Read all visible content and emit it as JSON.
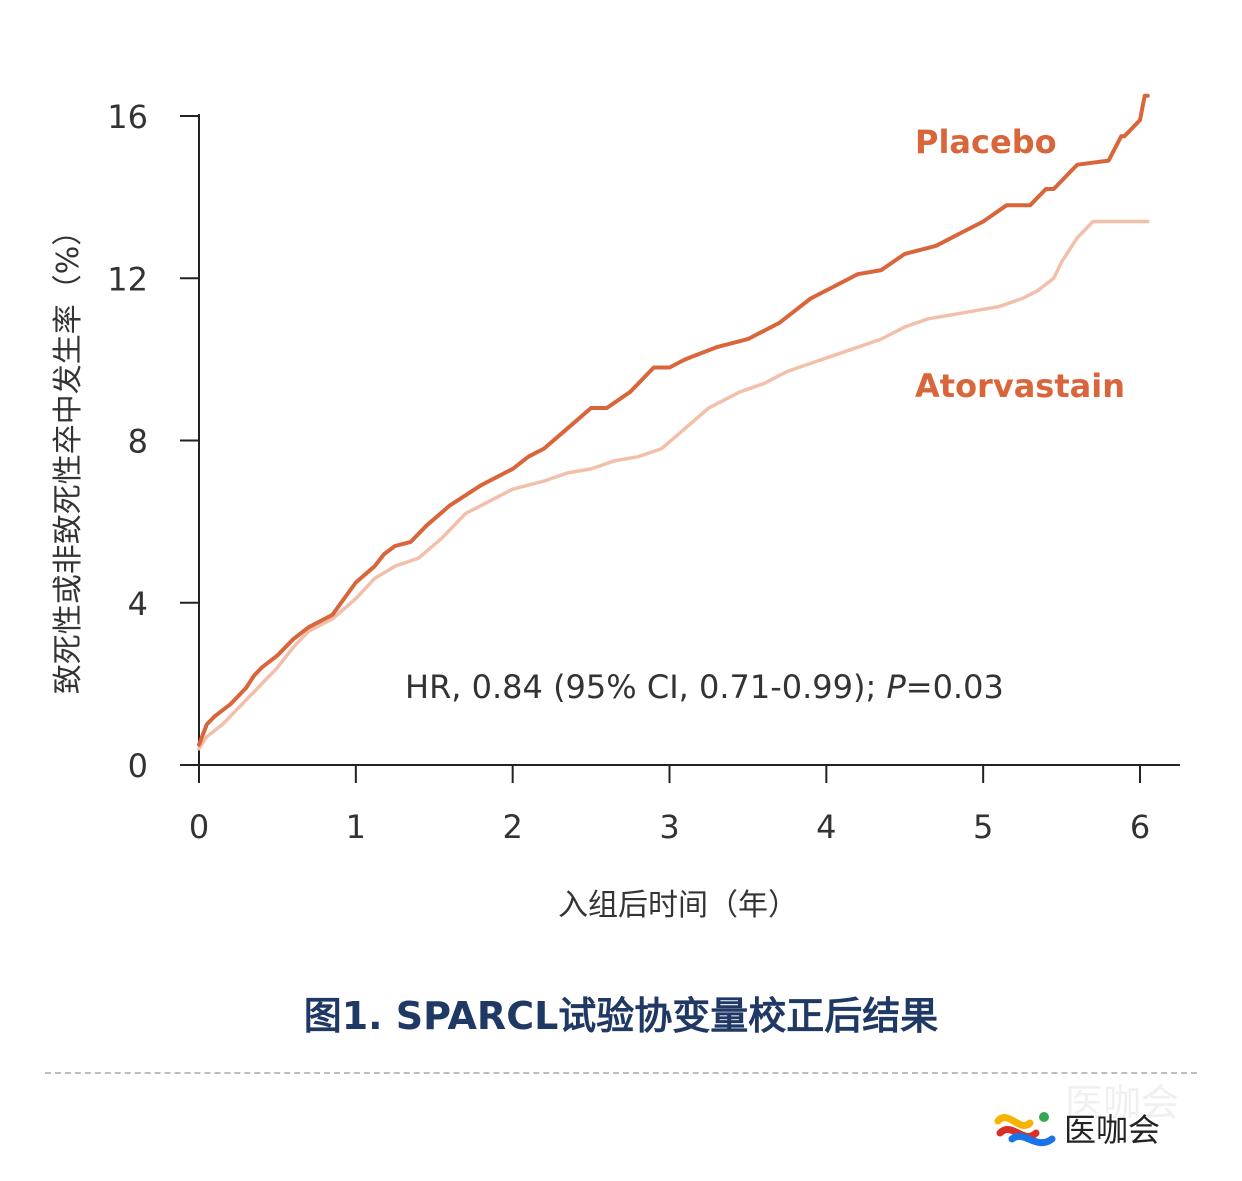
{
  "chart_data": {
    "type": "line",
    "title": "",
    "xlabel": "入组后时间（年）",
    "ylabel": "致死性或非致死性卒中发生率（%）",
    "xlim": [
      0,
      6.25
    ],
    "ylim": [
      0,
      16
    ],
    "xticks": [
      "0",
      "1",
      "2",
      "3",
      "4",
      "5",
      "6"
    ],
    "yticks": [
      "0",
      "4",
      "8",
      "12",
      "16"
    ],
    "annotation": {
      "prefix": "HR, 0.84 (95% CI, 0.71-0.99); ",
      "p_label": "P",
      "p_value": "=0.03"
    },
    "series": [
      {
        "name": "Placebo",
        "color": "#d9653b",
        "x": [
          0,
          0.05,
          0.1,
          0.2,
          0.3,
          0.35,
          0.4,
          0.5,
          0.6,
          0.7,
          0.85,
          1.0,
          1.12,
          1.18,
          1.25,
          1.35,
          1.45,
          1.6,
          1.8,
          2.0,
          2.1,
          2.2,
          2.35,
          2.5,
          2.6,
          2.75,
          2.9,
          3.0,
          3.1,
          3.3,
          3.5,
          3.7,
          3.8,
          3.9,
          4.05,
          4.2,
          4.35,
          4.5,
          4.7,
          4.85,
          5.0,
          5.15,
          5.3,
          5.4,
          5.45,
          5.5,
          5.55,
          5.6,
          5.8,
          5.88,
          5.9,
          6.0,
          6.03,
          6.05
        ],
        "y": [
          0.5,
          1.0,
          1.2,
          1.5,
          1.9,
          2.2,
          2.4,
          2.7,
          3.1,
          3.4,
          3.7,
          4.5,
          4.9,
          5.2,
          5.4,
          5.5,
          5.9,
          6.4,
          6.9,
          7.3,
          7.6,
          7.8,
          8.3,
          8.8,
          8.8,
          9.2,
          9.8,
          9.8,
          10.0,
          10.3,
          10.5,
          10.9,
          11.2,
          11.5,
          11.8,
          12.1,
          12.2,
          12.6,
          12.8,
          13.1,
          13.4,
          13.8,
          13.8,
          14.2,
          14.2,
          14.4,
          14.6,
          14.8,
          14.9,
          15.5,
          15.5,
          15.9,
          16.5,
          16.5
        ]
      },
      {
        "name": "Atorvastain",
        "color": "#f2c0aa",
        "x": [
          0,
          0.05,
          0.15,
          0.25,
          0.35,
          0.4,
          0.5,
          0.6,
          0.7,
          0.85,
          1.0,
          1.12,
          1.25,
          1.4,
          1.55,
          1.7,
          1.9,
          2.0,
          2.2,
          2.35,
          2.5,
          2.65,
          2.8,
          2.95,
          3.1,
          3.25,
          3.45,
          3.6,
          3.75,
          3.9,
          4.05,
          4.2,
          4.35,
          4.5,
          4.65,
          4.8,
          4.95,
          5.1,
          5.25,
          5.35,
          5.45,
          5.5,
          5.55,
          5.6,
          5.7,
          5.8,
          6.0,
          6.05
        ],
        "y": [
          0.4,
          0.7,
          1.0,
          1.4,
          1.8,
          2.0,
          2.4,
          2.9,
          3.3,
          3.6,
          4.1,
          4.6,
          4.9,
          5.1,
          5.6,
          6.2,
          6.6,
          6.8,
          7.0,
          7.2,
          7.3,
          7.5,
          7.6,
          7.8,
          8.3,
          8.8,
          9.2,
          9.4,
          9.7,
          9.9,
          10.1,
          10.3,
          10.5,
          10.8,
          11.0,
          11.1,
          11.2,
          11.3,
          11.5,
          11.7,
          12.0,
          12.4,
          12.7,
          13.0,
          13.4,
          13.4,
          13.4,
          13.4
        ]
      }
    ]
  },
  "caption": "图1.  SPARCL试验协变量校正后结果",
  "logo": {
    "text": "医咖会",
    "watermark": "医咖会",
    "colors": [
      "#f5b400",
      "#d93025",
      "#1a73e8",
      "#34a853"
    ]
  }
}
